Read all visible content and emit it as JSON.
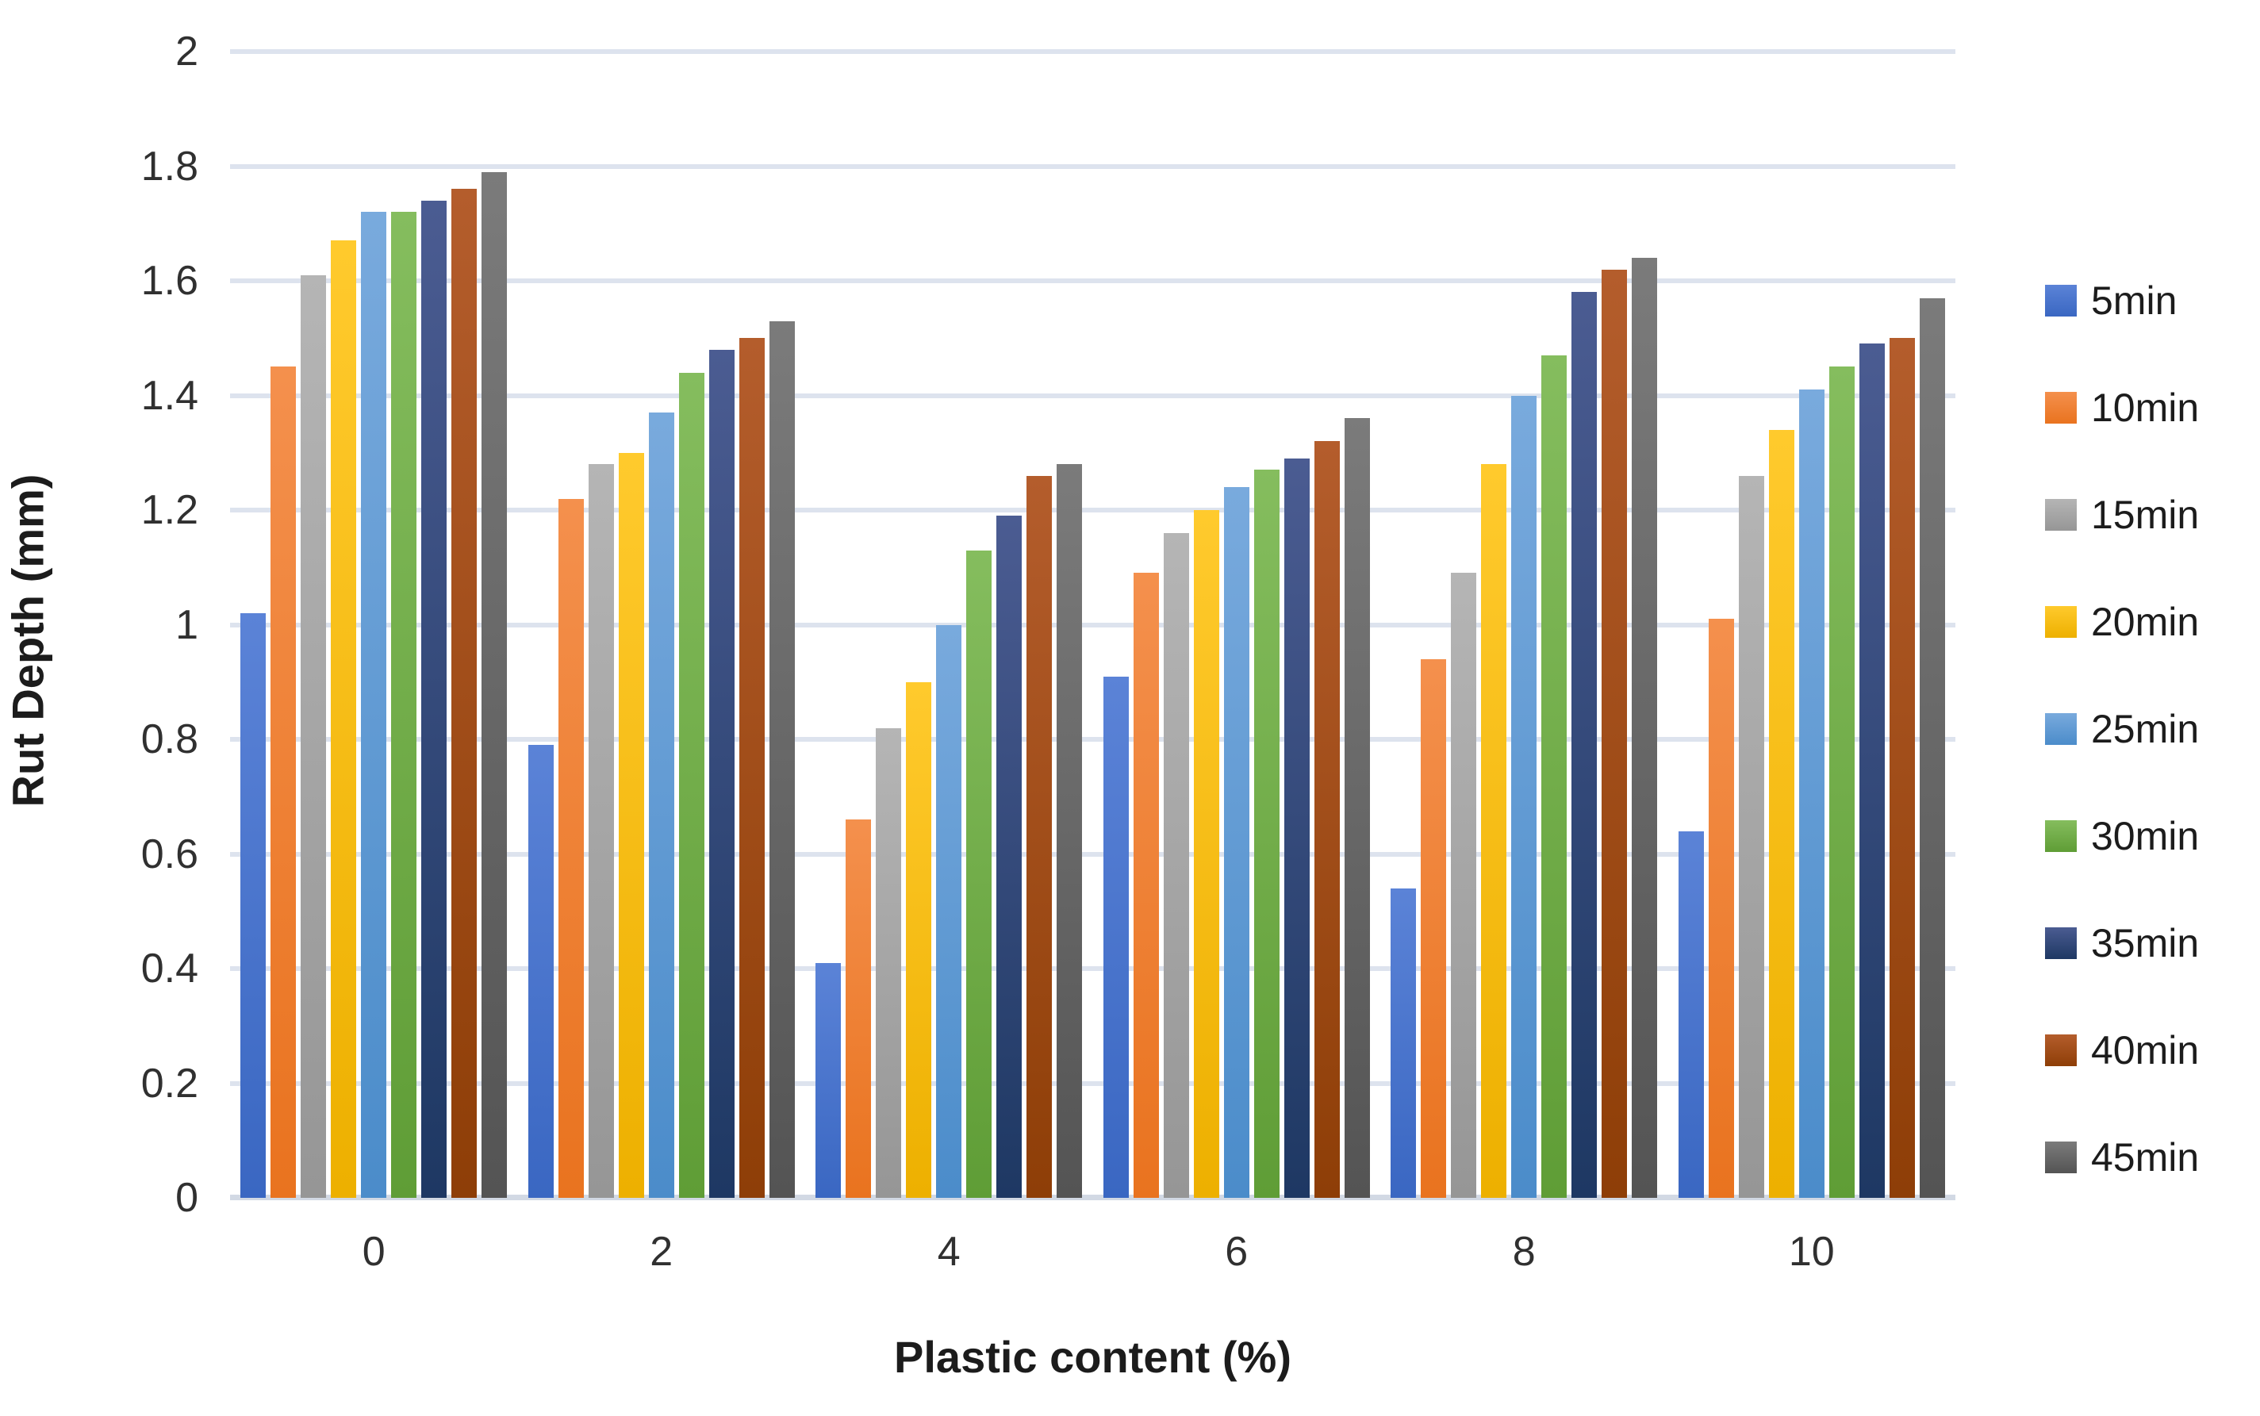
{
  "chart_data": {
    "type": "bar",
    "title": "",
    "xlabel": "Plastic content (%)",
    "ylabel": "Rut Depth (mm)",
    "categories": [
      "0",
      "2",
      "4",
      "6",
      "8",
      "10"
    ],
    "ylim": [
      0,
      2
    ],
    "ytick_step": 0.2,
    "ytick_labels": [
      "2",
      "1.8",
      "1.6",
      "1.4",
      "1.2",
      "1",
      "0.8",
      "0.6",
      "0.4",
      "0.2",
      "0"
    ],
    "grid": true,
    "legend_position": "right",
    "series": [
      {
        "name": "5min",
        "color": "#4472C4",
        "color_top": "#5b83d7",
        "color_bottom": "#3a67c2",
        "values": [
          1.02,
          0.79,
          0.41,
          0.91,
          0.54,
          0.64
        ]
      },
      {
        "name": "10min",
        "color": "#ED7D31",
        "color_top": "#f4904d",
        "color_bottom": "#e9731f",
        "values": [
          1.45,
          1.22,
          0.66,
          1.09,
          0.94,
          1.01
        ]
      },
      {
        "name": "15min",
        "color": "#A5A5A5",
        "color_top": "#b5b5b5",
        "color_bottom": "#969696",
        "values": [
          1.61,
          1.28,
          0.82,
          1.16,
          1.09,
          1.26
        ]
      },
      {
        "name": "20min",
        "color": "#FFC000",
        "color_top": "#ffca2d",
        "color_bottom": "#edb000",
        "values": [
          1.67,
          1.3,
          0.9,
          1.2,
          1.28,
          1.34
        ]
      },
      {
        "name": "25min",
        "color": "#5B9BD5",
        "color_top": "#79aadd",
        "color_bottom": "#4b8cca",
        "values": [
          1.72,
          1.37,
          1.0,
          1.24,
          1.4,
          1.41
        ]
      },
      {
        "name": "30min",
        "color": "#70AD47",
        "color_top": "#85bd5e",
        "color_bottom": "#5f9d36",
        "values": [
          1.72,
          1.44,
          1.13,
          1.27,
          1.47,
          1.45
        ]
      },
      {
        "name": "35min",
        "color": "#264478",
        "color_top": "#4b5c92",
        "color_bottom": "#1e3863",
        "values": [
          1.74,
          1.48,
          1.19,
          1.29,
          1.58,
          1.49
        ]
      },
      {
        "name": "40min",
        "color": "#9E480E",
        "color_top": "#b45d2c",
        "color_bottom": "#8e3e07",
        "values": [
          1.76,
          1.5,
          1.26,
          1.32,
          1.62,
          1.5
        ]
      },
      {
        "name": "45min",
        "color": "#636363",
        "color_top": "#7b7b7b",
        "color_bottom": "#545454",
        "values": [
          1.79,
          1.53,
          1.28,
          1.36,
          1.64,
          1.57
        ]
      }
    ]
  }
}
